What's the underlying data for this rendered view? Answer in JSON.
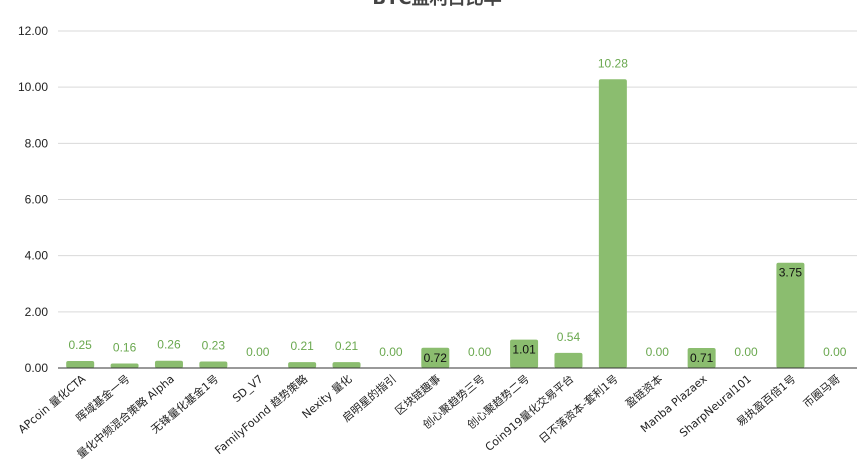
{
  "chart_data": {
    "type": "bar",
    "title": "BTC盈利占比率",
    "xlabel": "",
    "ylabel": "",
    "ylim": [
      0,
      12
    ],
    "yticks": [
      "0.00",
      "2.00",
      "4.00",
      "6.00",
      "8.00",
      "10.00",
      "12.00"
    ],
    "grid": true,
    "legend": "none",
    "bar_color": "#8bbd6f",
    "label_color": "#6aa84f",
    "categories": [
      "APcoin 量化CTA",
      "晖域基金一号",
      "量化中频混合策略 Alpha",
      "无锋量化基金1号",
      "SD_V7",
      "FamilyFound 趋势策略",
      "Nexity 量化",
      "启明星的指引",
      "区块链趣事",
      "创心聚趋势三号",
      "创心聚趋势二号",
      "Coin919量化交易平台",
      "日不落资本-套利1号",
      "盈链资本",
      "Manba Plazaex",
      "SharpNeural101",
      "易执盈百倍1号",
      "币圈马哥"
    ],
    "values": [
      0.25,
      0.16,
      0.26,
      0.23,
      0.0,
      0.21,
      0.21,
      0.0,
      0.72,
      0.0,
      1.01,
      0.54,
      10.28,
      0.0,
      0.71,
      0.0,
      3.75,
      0.0
    ],
    "value_labels": [
      "0.25",
      "0.16",
      "0.26",
      "0.23",
      "0.00",
      "0.21",
      "0.21",
      "0.00",
      "0.72",
      "0.00",
      "1.01",
      "0.54",
      "10.28",
      "0.00",
      "0.71",
      "0.00",
      "3.75",
      "0.00"
    ]
  }
}
